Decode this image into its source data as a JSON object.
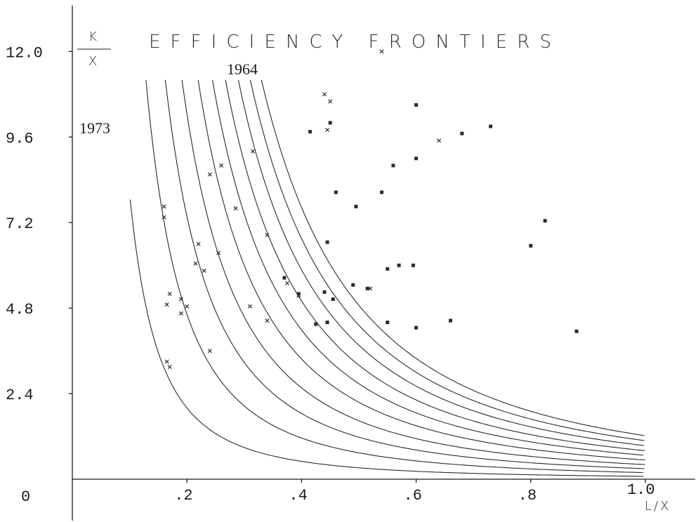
{
  "chart_data": {
    "type": "scatter",
    "title": "EFFICIENCY FRONTIERS",
    "ylabel": {
      "numerator": "K",
      "denominator": "X"
    },
    "xlabel": "L/X",
    "xlim": [
      0,
      1.08
    ],
    "ylim": [
      0,
      12.6
    ],
    "grid": false,
    "x_ticks": [
      {
        "value": 0,
        "label": "0"
      },
      {
        "value": 0.2,
        "label": ".2"
      },
      {
        "value": 0.4,
        "label": ".4"
      },
      {
        "value": 0.6,
        "label": ".6"
      },
      {
        "value": 0.8,
        "label": ".8"
      },
      {
        "value": 1.0,
        "label": "1.0"
      }
    ],
    "y_ticks": [
      {
        "value": 2.4,
        "label": "2.4"
      },
      {
        "value": 4.8,
        "label": "4.8"
      },
      {
        "value": 7.2,
        "label": "7.2"
      },
      {
        "value": 9.6,
        "label": "9.6"
      },
      {
        "value": 12.0,
        "label": "12.0"
      }
    ],
    "annotations": {
      "first_year": "1964",
      "last_year": "1973"
    },
    "frontiers": [
      {
        "k": 0.08,
        "x_start": 0.101
      },
      {
        "k": 0.185,
        "x_start": 0.124
      },
      {
        "k": 0.295,
        "x_start": 0.145
      },
      {
        "k": 0.41,
        "x_start": 0.166
      },
      {
        "k": 0.54,
        "x_start": 0.185
      },
      {
        "k": 0.67,
        "x_start": 0.206
      },
      {
        "k": 0.8,
        "x_start": 0.225
      },
      {
        "k": 0.94,
        "x_start": 0.244
      },
      {
        "k": 1.08,
        "x_start": 0.264
      },
      {
        "k": 1.22,
        "x_start": 0.284
      }
    ],
    "series": [
      {
        "marker": "cross",
        "points": [
          [
            0.54,
            12.0
          ],
          [
            0.44,
            10.8
          ],
          [
            0.45,
            10.6
          ],
          [
            0.445,
            9.8
          ],
          [
            0.315,
            9.2
          ],
          [
            0.64,
            9.5
          ],
          [
            0.26,
            8.8
          ],
          [
            0.24,
            8.55
          ],
          [
            0.285,
            7.6
          ],
          [
            0.16,
            7.65
          ],
          [
            0.16,
            7.35
          ],
          [
            0.34,
            6.85
          ],
          [
            0.22,
            6.6
          ],
          [
            0.255,
            6.35
          ],
          [
            0.215,
            6.05
          ],
          [
            0.23,
            5.85
          ],
          [
            0.375,
            5.5
          ],
          [
            0.395,
            5.15
          ],
          [
            0.52,
            5.35
          ],
          [
            0.17,
            5.2
          ],
          [
            0.19,
            5.05
          ],
          [
            0.165,
            4.9
          ],
          [
            0.2,
            4.85
          ],
          [
            0.31,
            4.85
          ],
          [
            0.19,
            4.65
          ],
          [
            0.34,
            4.45
          ],
          [
            0.24,
            3.6
          ],
          [
            0.17,
            3.15
          ],
          [
            0.165,
            3.3
          ]
        ]
      },
      {
        "marker": "square",
        "points": [
          [
            0.6,
            10.5
          ],
          [
            0.45,
            10.0
          ],
          [
            0.415,
            9.75
          ],
          [
            0.68,
            9.7
          ],
          [
            0.73,
            9.9
          ],
          [
            0.6,
            9.0
          ],
          [
            0.56,
            8.8
          ],
          [
            0.46,
            8.05
          ],
          [
            0.54,
            8.05
          ],
          [
            0.495,
            7.65
          ],
          [
            0.825,
            7.25
          ],
          [
            0.8,
            6.55
          ],
          [
            0.445,
            6.65
          ],
          [
            0.55,
            5.9
          ],
          [
            0.57,
            6.0
          ],
          [
            0.595,
            6.0
          ],
          [
            0.37,
            5.65
          ],
          [
            0.49,
            5.45
          ],
          [
            0.515,
            5.35
          ],
          [
            0.395,
            5.2
          ],
          [
            0.44,
            5.25
          ],
          [
            0.455,
            5.05
          ],
          [
            0.425,
            4.35
          ],
          [
            0.445,
            4.4
          ],
          [
            0.55,
            4.4
          ],
          [
            0.6,
            4.25
          ],
          [
            0.66,
            4.45
          ],
          [
            0.88,
            4.15
          ]
        ]
      }
    ]
  }
}
